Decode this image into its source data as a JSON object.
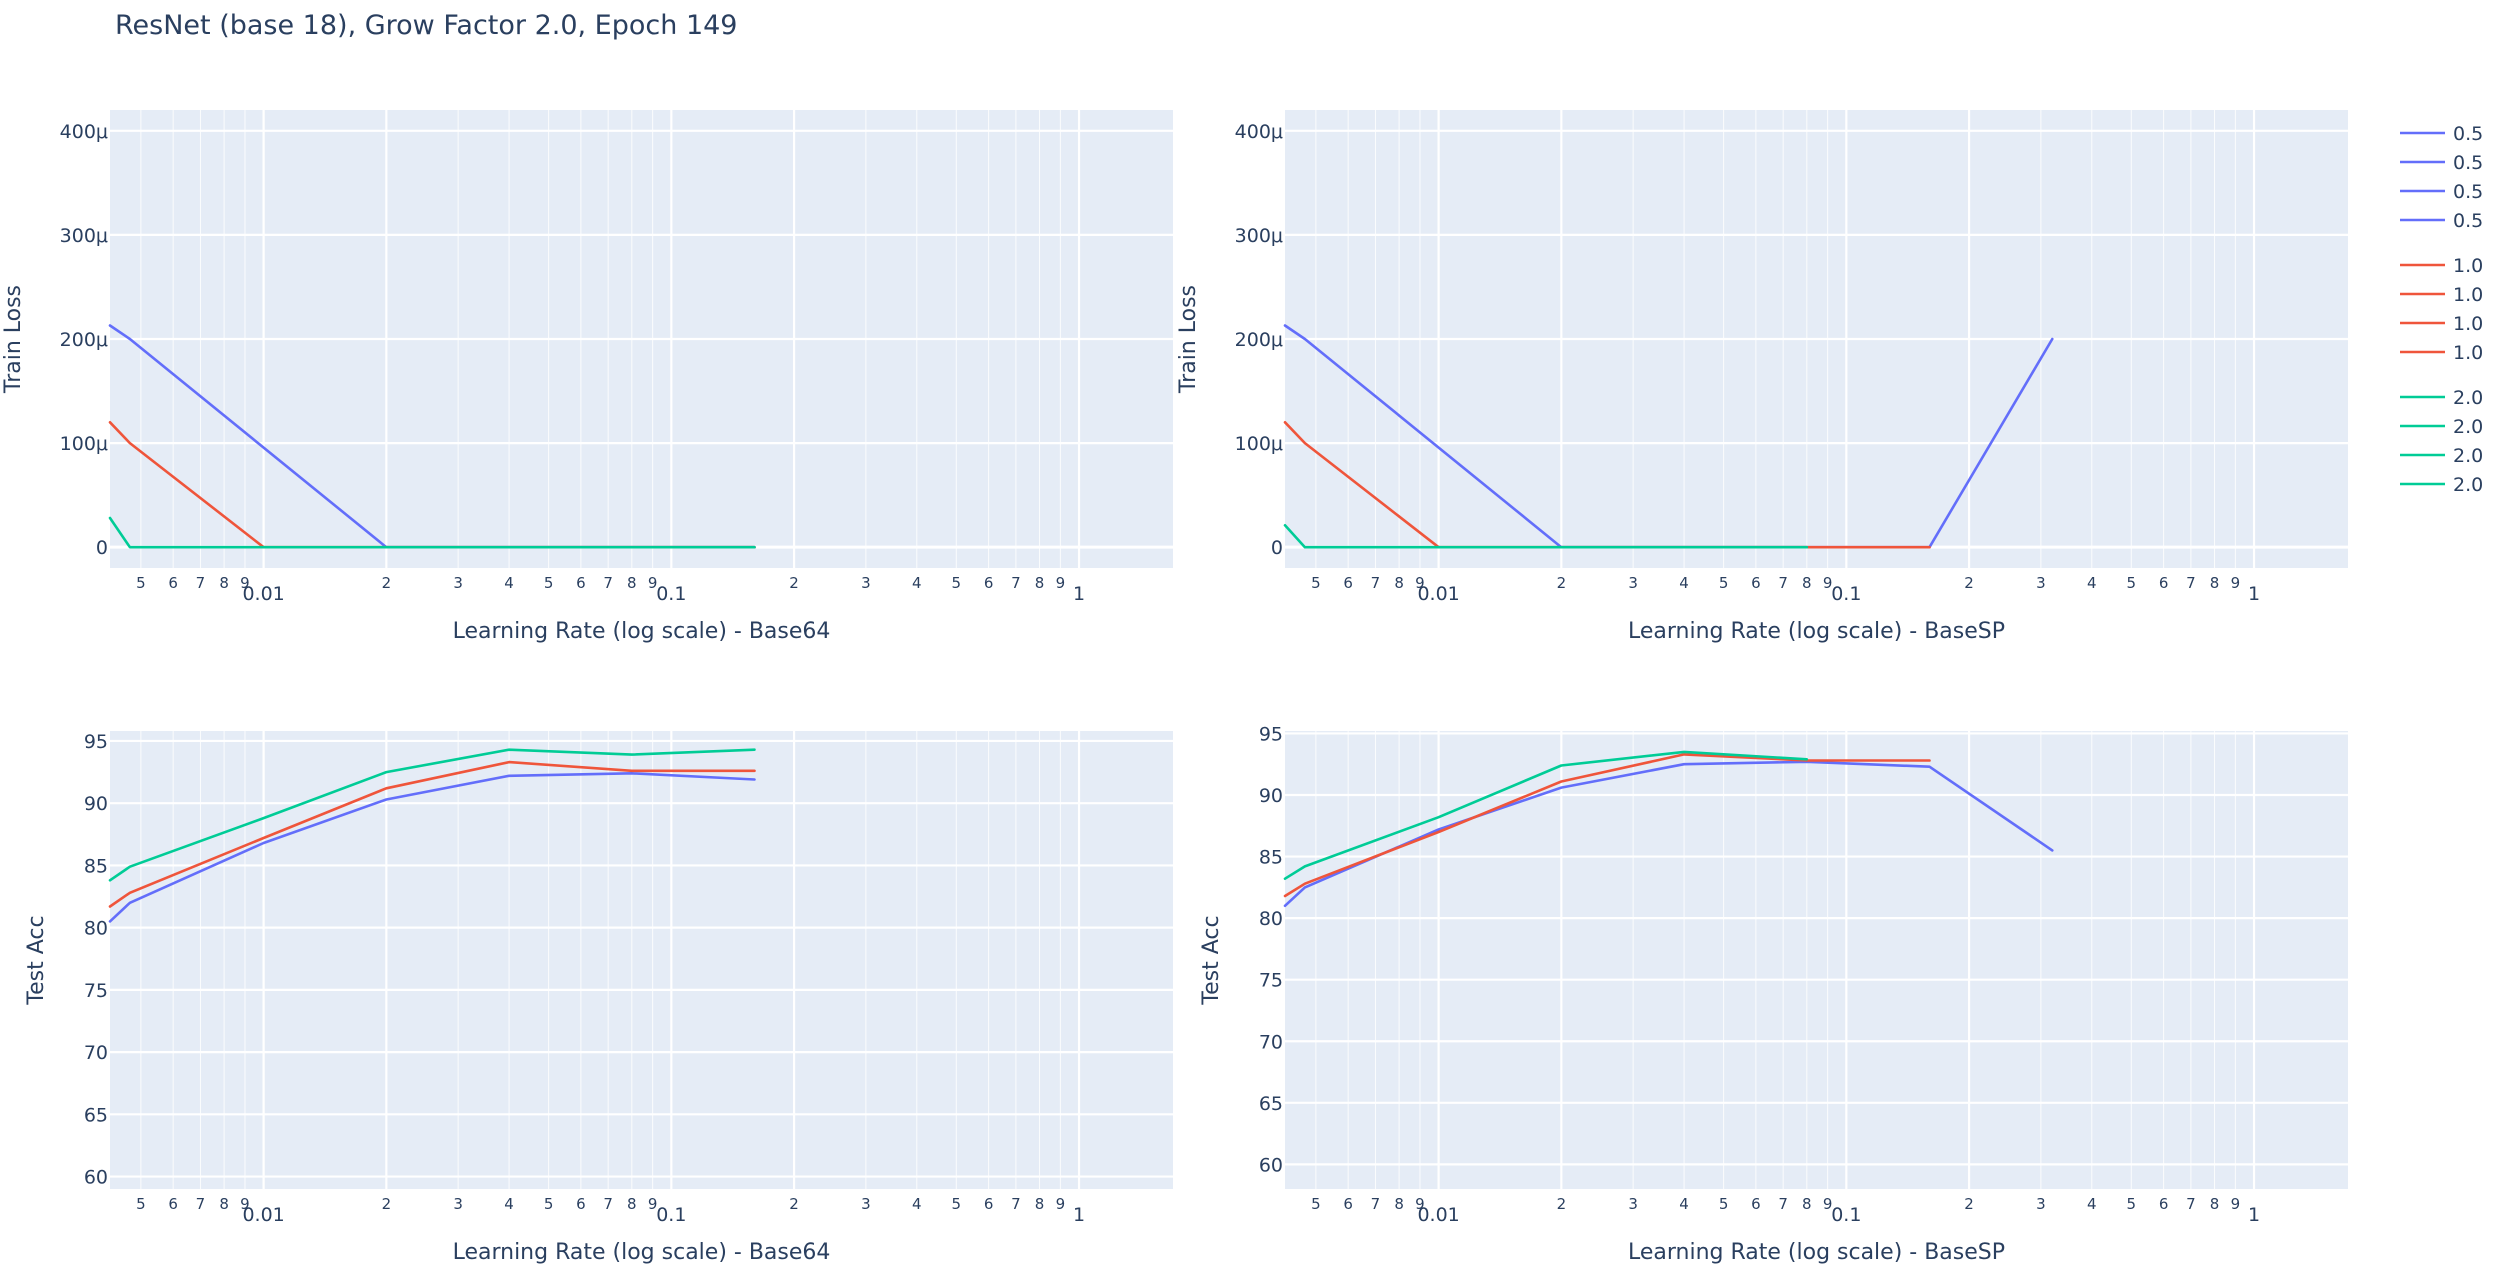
{
  "figure": {
    "title": "ResNet (base 18), Grow Factor 2.0, Epoch 149"
  },
  "colors": {
    "0.5": "#636efa",
    "1.0": "#ef553b",
    "2.0": "#00cc96"
  },
  "legend": {
    "groups": [
      {
        "color_key": "0.5",
        "labels": [
          "0.5",
          "0.5",
          "0.5",
          "0.5"
        ]
      },
      {
        "color_key": "1.0",
        "labels": [
          "1.0",
          "1.0",
          "1.0",
          "1.0"
        ]
      },
      {
        "color_key": "2.0",
        "labels": [
          "2.0",
          "2.0",
          "2.0",
          "2.0"
        ]
      }
    ]
  },
  "chart_data": [
    {
      "type": "line",
      "id": "train-base64",
      "xlabel": "Learning Rate (log scale) - Base64",
      "ylabel": "Train Loss",
      "x_scale": "log",
      "xlim": [
        0.0042,
        1.7
      ],
      "ylim": [
        -2e-05,
        0.00042
      ],
      "yticks": [
        0,
        0.0001,
        0.0002,
        0.0003,
        0.0004
      ],
      "ytick_labels": [
        "0",
        "100μ",
        "200μ",
        "300μ",
        "400μ"
      ],
      "grid": true,
      "series": [
        {
          "name": "0.5",
          "x": [
            0.0042,
            0.0047,
            0.02,
            0.04,
            0.08,
            0.16
          ],
          "y": [
            0.000213,
            0.0002,
            0.0,
            0.0,
            0.0,
            0.0
          ]
        },
        {
          "name": "1.0",
          "x": [
            0.0042,
            0.0047,
            0.01,
            0.02,
            0.04,
            0.08,
            0.16
          ],
          "y": [
            0.00012,
            0.0001,
            0.0,
            0.0,
            0.0,
            0.0,
            0.0
          ]
        },
        {
          "name": "2.0",
          "x": [
            0.0042,
            0.0047,
            0.01,
            0.02,
            0.04,
            0.08,
            0.16
          ],
          "y": [
            2.8e-05,
            0.0,
            0.0,
            0.0,
            0.0,
            0.0,
            0.0
          ]
        }
      ]
    },
    {
      "type": "line",
      "id": "train-basesp",
      "xlabel": "Learning Rate (log scale) - BaseSP",
      "ylabel": "Train Loss",
      "x_scale": "log",
      "xlim": [
        0.0042,
        1.7
      ],
      "ylim": [
        -2e-05,
        0.00042
      ],
      "yticks": [
        0,
        0.0001,
        0.0002,
        0.0003,
        0.0004
      ],
      "ytick_labels": [
        "0",
        "100μ",
        "200μ",
        "300μ",
        "400μ"
      ],
      "grid": true,
      "series": [
        {
          "name": "0.5",
          "x": [
            0.0042,
            0.0047,
            0.02,
            0.04,
            0.08,
            0.16,
            0.32
          ],
          "y": [
            0.000213,
            0.0002,
            0.0,
            0.0,
            0.0,
            0.0,
            0.0002
          ]
        },
        {
          "name": "1.0",
          "x": [
            0.0042,
            0.0047,
            0.01,
            0.02,
            0.04,
            0.08,
            0.16
          ],
          "y": [
            0.00012,
            0.0001,
            0.0,
            0.0,
            0.0,
            0.0,
            0.0
          ]
        },
        {
          "name": "2.0",
          "x": [
            0.0042,
            0.0047,
            0.01,
            0.02,
            0.04,
            0.08
          ],
          "y": [
            2.1e-05,
            0.0,
            0.0,
            0.0,
            0.0,
            0.0
          ]
        }
      ]
    },
    {
      "type": "line",
      "id": "test-base64",
      "xlabel": "Learning Rate (log scale) - Base64",
      "ylabel": "Test Acc",
      "x_scale": "log",
      "xlim": [
        0.0042,
        1.7
      ],
      "ylim": [
        59,
        95.8
      ],
      "yticks": [
        60,
        65,
        70,
        75,
        80,
        85,
        90,
        95
      ],
      "ytick_labels": [
        "60",
        "65",
        "70",
        "75",
        "80",
        "85",
        "90",
        "95"
      ],
      "grid": true,
      "series": [
        {
          "name": "0.5",
          "x": [
            0.0042,
            0.0047,
            0.01,
            0.02,
            0.04,
            0.08,
            0.16
          ],
          "y": [
            80.5,
            82.0,
            86.8,
            90.3,
            92.2,
            92.4,
            91.9
          ]
        },
        {
          "name": "1.0",
          "x": [
            0.0042,
            0.0047,
            0.01,
            0.02,
            0.04,
            0.08,
            0.16
          ],
          "y": [
            81.7,
            82.8,
            87.2,
            91.2,
            93.3,
            92.6,
            92.6
          ]
        },
        {
          "name": "2.0",
          "x": [
            0.0042,
            0.0047,
            0.01,
            0.02,
            0.04,
            0.08,
            0.16
          ],
          "y": [
            83.8,
            84.9,
            88.8,
            92.5,
            94.3,
            93.9,
            94.3
          ]
        }
      ]
    },
    {
      "type": "line",
      "id": "test-basesp",
      "xlabel": "Learning Rate (log scale) - BaseSP",
      "ylabel": "Test Acc",
      "x_scale": "log",
      "xlim": [
        0.0042,
        1.7
      ],
      "ylim": [
        58,
        95.2
      ],
      "yticks": [
        60,
        65,
        70,
        75,
        80,
        85,
        90,
        95
      ],
      "ytick_labels": [
        "60",
        "65",
        "70",
        "75",
        "80",
        "85",
        "90",
        "95"
      ],
      "grid": true,
      "series": [
        {
          "name": "0.5",
          "x": [
            0.0042,
            0.0047,
            0.01,
            0.02,
            0.04,
            0.08,
            0.16,
            0.32
          ],
          "y": [
            81.0,
            82.5,
            87.2,
            90.6,
            92.5,
            92.7,
            92.3,
            85.5
          ]
        },
        {
          "name": "1.0",
          "x": [
            0.0042,
            0.0047,
            0.01,
            0.02,
            0.04,
            0.08,
            0.16
          ],
          "y": [
            81.8,
            82.8,
            87.0,
            91.1,
            93.3,
            92.8,
            92.8
          ]
        },
        {
          "name": "2.0",
          "x": [
            0.0042,
            0.0047,
            0.01,
            0.02,
            0.04,
            0.08
          ],
          "y": [
            83.2,
            84.2,
            88.2,
            92.4,
            93.5,
            92.9
          ]
        }
      ]
    }
  ]
}
